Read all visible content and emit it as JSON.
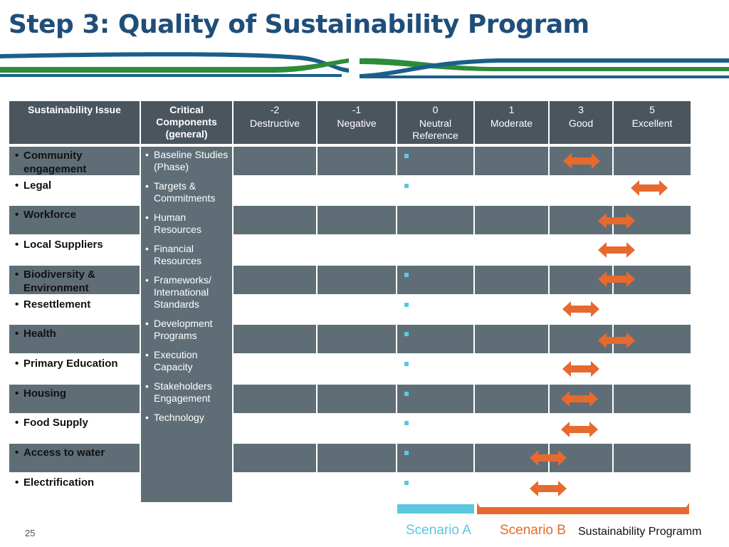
{
  "title": "Step 3: Quality of Sustainability Program",
  "table": {
    "columns": [
      "Sustainability Issue",
      "Critical Components (general)"
    ],
    "scale": [
      {
        "score": -2,
        "label": "Destructive"
      },
      {
        "score": -1,
        "label": "Negative"
      },
      {
        "score": 0,
        "label": "Neutral Reference"
      },
      {
        "score": 1,
        "label": "Moderate"
      },
      {
        "score": 3,
        "label": "Good"
      },
      {
        "score": 5,
        "label": "Excellent"
      }
    ],
    "issues": [
      "Community engagement",
      "Legal",
      "Workforce",
      "Local Suppliers",
      "Biodiversity & Environment",
      "Resettlement",
      "Health",
      "Primary Education",
      "Housing",
      "Food Supply",
      "Access to water",
      "Electrification"
    ],
    "components": [
      "Baseline Studies (Phase)",
      "Targets & Commitments",
      "Human Resources",
      "Financial Resources",
      "Frameworks/ International Standards",
      "Development Programs",
      "Execution Capacity",
      "Stakeholders Engagement",
      "Technology"
    ]
  },
  "legend": {
    "scenarios": [
      "Scenario A",
      "Scenario B"
    ],
    "note": "Sustainability Programm"
  },
  "page_number": 25
}
